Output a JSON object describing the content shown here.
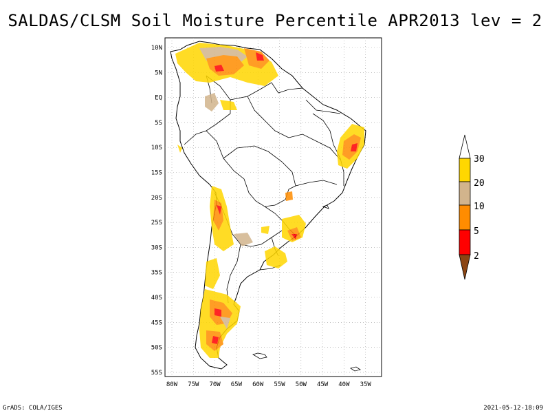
{
  "title": "SALDAS/CLSM Soil Moisture Percentile APR2013 lev = 2",
  "footer": {
    "left": "GrADS: COLA/IGES",
    "right": "2021-05-12-18:09"
  },
  "lat_ticks": [
    "10N",
    "5N",
    "EQ",
    "5S",
    "10S",
    "15S",
    "20S",
    "25S",
    "30S",
    "35S",
    "40S",
    "45S",
    "50S",
    "55S"
  ],
  "lon_ticks": [
    "80W",
    "75W",
    "70W",
    "65W",
    "60W",
    "55W",
    "50W",
    "45W",
    "40W",
    "35W"
  ],
  "legend": {
    "labels": [
      "30",
      "20",
      "10",
      "5",
      "2"
    ],
    "colors": {
      "c30": "#ffffff",
      "c20_30": "#ffd700",
      "c10_20": "#d2b48c",
      "c5_10": "#ff8c00",
      "c2_5": "#ff0000",
      "c0_2": "#8b4513"
    }
  }
}
